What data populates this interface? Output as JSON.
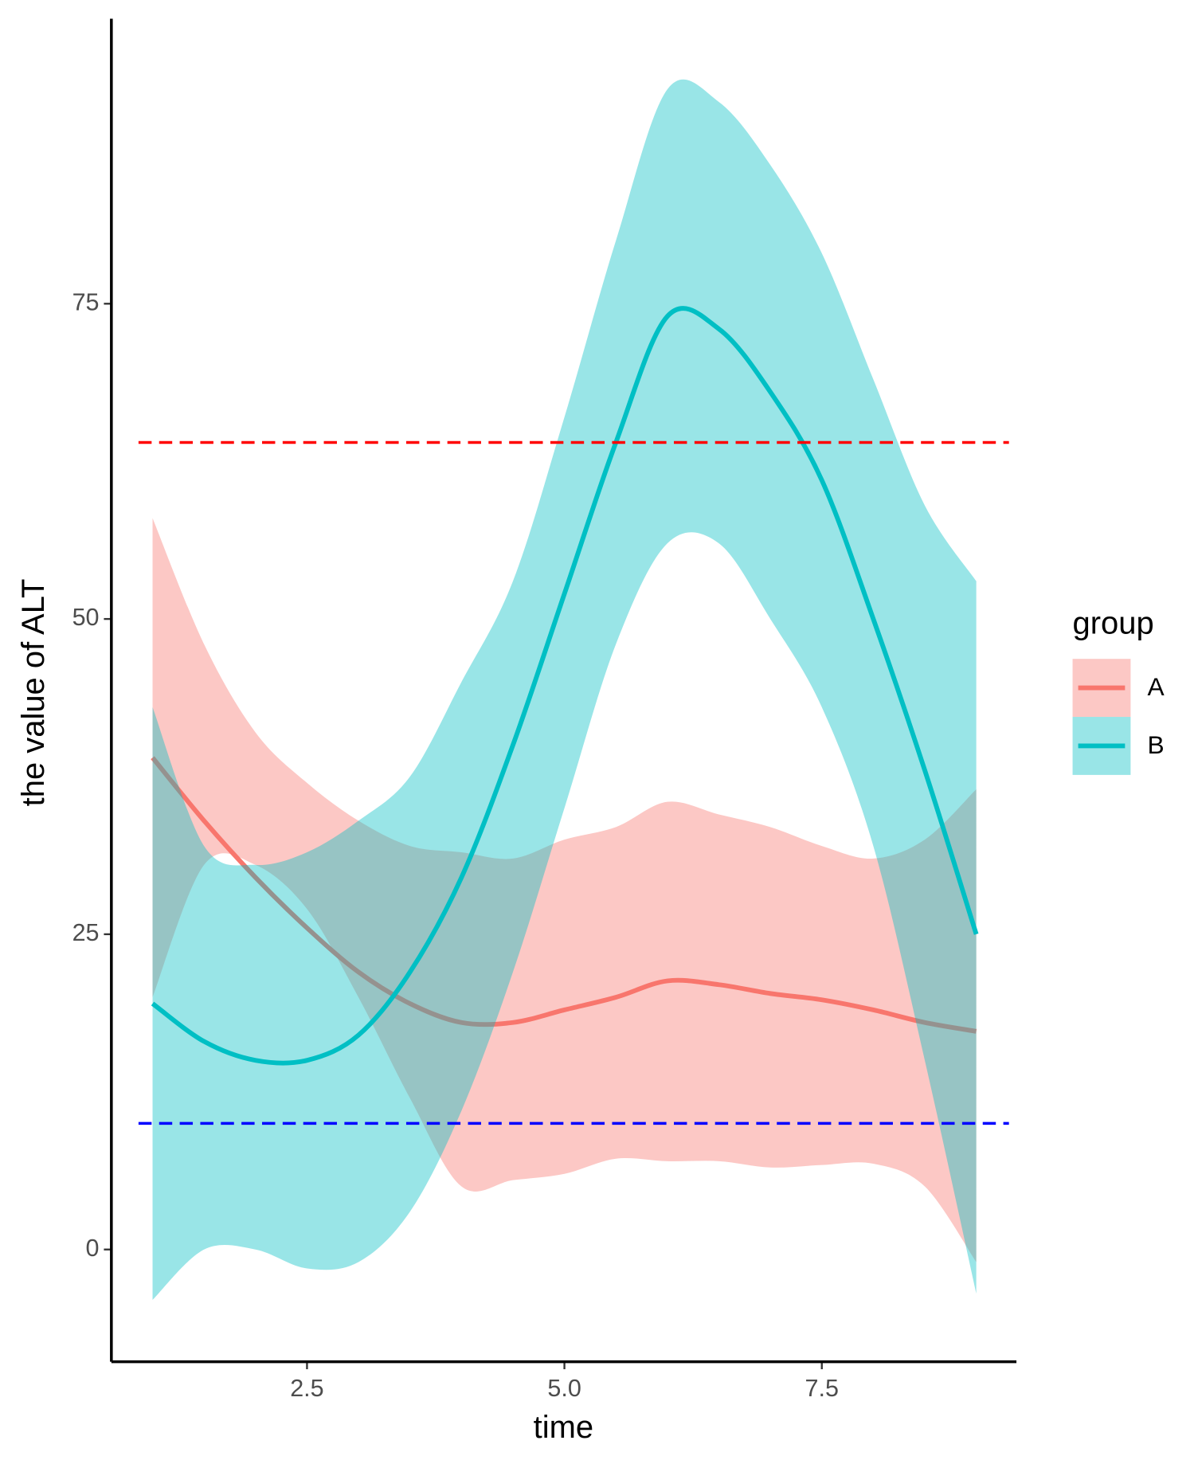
{
  "chart_data": {
    "type": "line",
    "x_label": "time",
    "y_label": "the value of ALT",
    "legend_title": "group",
    "x": [
      1,
      1.5,
      2,
      2.5,
      3,
      3.5,
      4,
      4.5,
      5,
      5.5,
      6,
      6.5,
      7,
      7.5,
      8,
      8.5,
      9
    ],
    "series": [
      {
        "name": "A",
        "color": "#F8766D",
        "values": [
          39,
          34,
          29.5,
          25.5,
          22,
          19.5,
          18,
          18,
          19,
          20,
          21.3,
          21,
          20.3,
          19.8,
          19,
          18,
          17.3
        ],
        "lower": [
          20,
          30.5,
          30.5,
          27,
          20,
          12,
          5,
          5.5,
          6,
          7.2,
          7,
          7,
          6.5,
          6.7,
          6.8,
          5,
          -1
        ],
        "upper": [
          58,
          48,
          41,
          37,
          34,
          32,
          31.5,
          31,
          32.5,
          33.5,
          35.5,
          34.5,
          33.5,
          32,
          31,
          32.5,
          36.5
        ]
      },
      {
        "name": "B",
        "color": "#00BFC4",
        "values": [
          19.5,
          16.5,
          15,
          15,
          17,
          22,
          29.5,
          40,
          52,
          64,
          74,
          73,
          68,
          61,
          50,
          38,
          25
        ],
        "lower": [
          -4,
          0,
          0,
          -1.5,
          -1,
          3,
          11,
          22,
          35,
          48,
          56,
          56,
          50,
          43,
          32,
          15,
          -3.5
        ],
        "upper": [
          43,
          32,
          30.5,
          31.5,
          34,
          37.5,
          45,
          53,
          66,
          80,
          92,
          91,
          86,
          79,
          69,
          59,
          53
        ]
      }
    ],
    "hlines": [
      {
        "value": 64,
        "color": "#ff0000"
      },
      {
        "value": 10,
        "color": "#0000ff"
      }
    ],
    "xlim": [
      0.6,
      9.39
    ],
    "ylim": [
      -8.9,
      97.6
    ],
    "xticks": [
      {
        "value": 2.5,
        "label": "2.5"
      },
      {
        "value": 5,
        "label": "5.0"
      },
      {
        "value": 7.5,
        "label": "7.5"
      }
    ],
    "yticks": [
      0,
      25,
      50,
      75
    ],
    "ribbon_opacity": 0.4,
    "legend_position": "right"
  }
}
